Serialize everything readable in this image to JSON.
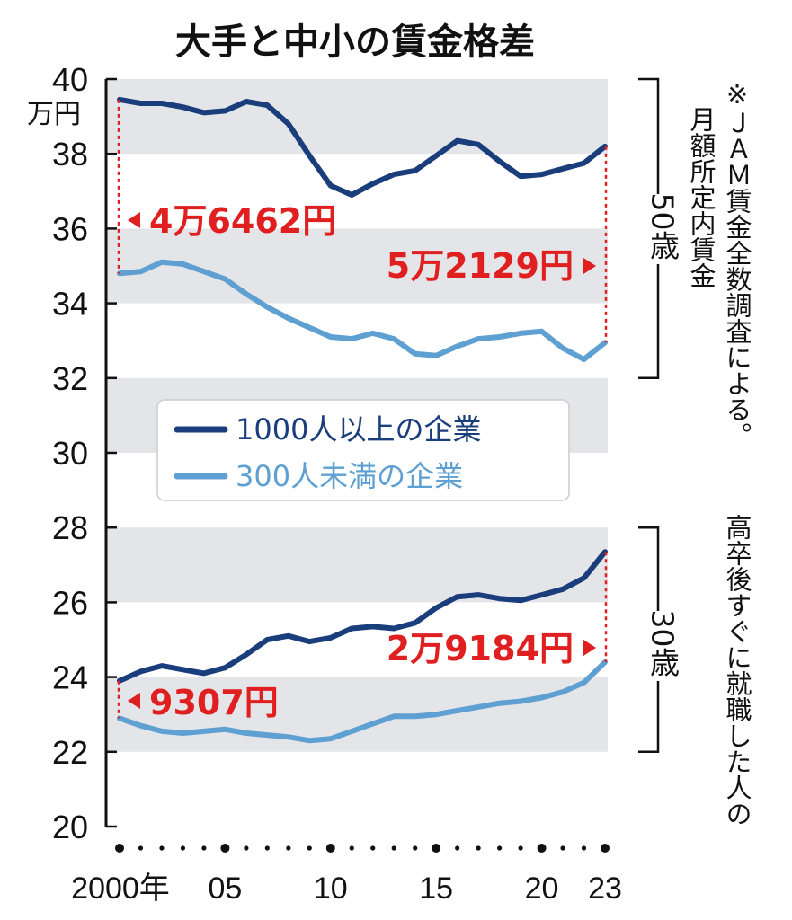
{
  "chart_data": {
    "type": "line",
    "title": "大手と中小の賃金格差",
    "ylabel": "万円",
    "ylim": [
      20,
      40
    ],
    "yticks": [
      "20",
      "22",
      "24",
      "26",
      "28",
      "30",
      "32",
      "34",
      "36",
      "38",
      "40"
    ],
    "x": [
      2000,
      2001,
      2002,
      2003,
      2004,
      2005,
      2006,
      2007,
      2008,
      2009,
      2010,
      2011,
      2012,
      2013,
      2014,
      2015,
      2016,
      2017,
      2018,
      2019,
      2020,
      2021,
      2022,
      2023
    ],
    "xticks": [
      {
        "value": 2000,
        "label": "2000年"
      },
      {
        "value": 2005,
        "label": "05"
      },
      {
        "value": 2010,
        "label": "10"
      },
      {
        "value": 2015,
        "label": "15"
      },
      {
        "value": 2020,
        "label": "20"
      },
      {
        "value": 2023,
        "label": "23"
      }
    ],
    "series": [
      {
        "name": "1000人以上の企業",
        "group": "50歳",
        "color": "#1a3d7c",
        "values": [
          39.45,
          39.35,
          39.35,
          39.25,
          39.1,
          39.15,
          39.4,
          39.3,
          38.8,
          37.95,
          37.15,
          36.9,
          37.2,
          37.45,
          37.55,
          37.95,
          38.35,
          38.25,
          37.8,
          37.4,
          37.45,
          37.6,
          37.75,
          38.2
        ]
      },
      {
        "name": "300人未満の企業",
        "group": "50歳",
        "color": "#5fa0d3",
        "values": [
          34.8,
          34.85,
          35.1,
          35.05,
          34.85,
          34.65,
          34.25,
          33.9,
          33.6,
          33.35,
          33.1,
          33.05,
          33.2,
          33.05,
          32.65,
          32.6,
          32.85,
          33.05,
          33.1,
          33.2,
          33.25,
          32.8,
          32.5,
          32.95
        ]
      },
      {
        "name": "1000人以上の企業",
        "group": "30歳",
        "color": "#1a3d7c",
        "values": [
          23.9,
          24.15,
          24.3,
          24.2,
          24.1,
          24.25,
          24.6,
          25.0,
          25.1,
          24.95,
          25.05,
          25.3,
          25.35,
          25.3,
          25.45,
          25.85,
          26.15,
          26.2,
          26.1,
          26.05,
          26.2,
          26.35,
          26.65,
          27.35
        ]
      },
      {
        "name": "300人未満の企業",
        "group": "30歳",
        "color": "#5fa0d3",
        "values": [
          22.9,
          22.7,
          22.55,
          22.5,
          22.55,
          22.6,
          22.5,
          22.45,
          22.4,
          22.3,
          22.35,
          22.55,
          22.75,
          22.95,
          22.95,
          23.0,
          23.1,
          23.2,
          23.3,
          23.35,
          23.45,
          23.6,
          23.85,
          24.4
        ]
      }
    ],
    "bands": [
      [
        22,
        24
      ],
      [
        26,
        28
      ],
      [
        30,
        32
      ],
      [
        34,
        36
      ],
      [
        38,
        40
      ]
    ],
    "legend": [
      {
        "label": "1000人以上の企業",
        "color": "#1a3d7c"
      },
      {
        "label": "300人未満の企業",
        "color": "#5fa0d3"
      }
    ],
    "annotations": [
      {
        "text": "4万6462円",
        "arrow": "left"
      },
      {
        "text": "5万2129円",
        "arrow": "right"
      },
      {
        "text": "9307円",
        "arrow": "left"
      },
      {
        "text": "2万9184円",
        "arrow": "right"
      }
    ],
    "groups": [
      {
        "label": "50歳",
        "range": [
          32,
          40
        ]
      },
      {
        "label": "30歳",
        "range": [
          22,
          28
        ]
      }
    ],
    "note_lines": [
      "※ＪＡＭ賃金全数調査による。",
      "月額所定内賃金",
      "高卒後すぐに就職した人の"
    ]
  },
  "colors": {
    "accent": "#e02020",
    "band": "#e4e5e8",
    "axis": "#111111"
  }
}
